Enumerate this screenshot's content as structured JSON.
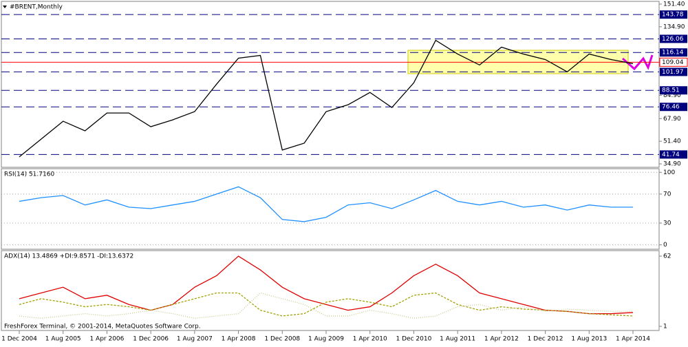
{
  "chart_data": [
    {
      "type": "line",
      "title": "#BRENT,Monthly",
      "color": "#000000",
      "values": [
        40,
        53,
        66,
        59,
        72,
        72,
        62,
        67,
        73,
        93,
        112,
        114,
        45,
        50,
        73,
        78,
        87,
        76,
        94,
        125,
        115,
        107,
        120,
        115,
        111,
        102,
        115,
        111,
        108
      ],
      "ylim": [
        32.4,
        153.4
      ],
      "yticks": [
        {
          "value": 151.4,
          "label": "151.40"
        },
        {
          "value": 134.9,
          "label": "134.90"
        },
        {
          "value": 84.9,
          "label": "84.90"
        },
        {
          "value": 67.9,
          "label": "67.90"
        },
        {
          "value": 51.4,
          "label": "51.40"
        },
        {
          "value": 34.9,
          "label": "34.90"
        }
      ],
      "levels": [
        {
          "value": 143.78,
          "label": "143.78"
        },
        {
          "value": 126.06,
          "label": "126.06"
        },
        {
          "value": 116.14,
          "label": "116.14"
        },
        {
          "value": 101.97,
          "label": "101.97"
        },
        {
          "value": 88.51,
          "label": "88.51"
        },
        {
          "value": 76.46,
          "label": "76.46"
        },
        {
          "value": 41.74,
          "label": "41.74"
        }
      ],
      "level_color": "#00007f",
      "current": {
        "value": 109.04,
        "label": "109.04"
      },
      "current_color": "#ff0000"
    },
    {
      "type": "line",
      "title": "RSI(14) 51.7160",
      "color": "#1e90ff",
      "values": [
        60,
        65,
        68,
        55,
        62,
        52,
        50,
        55,
        60,
        70,
        80,
        65,
        35,
        32,
        38,
        55,
        58,
        50,
        62,
        75,
        60,
        55,
        60,
        52,
        55,
        48,
        55,
        52,
        52
      ],
      "ylim": [
        -6,
        105
      ],
      "yticks": [
        100,
        70,
        30,
        0
      ],
      "grid": true
    },
    {
      "type": "line",
      "title": "ADX(14) 13.4869 +DI:9.8571 -DI:13.6372",
      "categories": [
        "1 Dec 2004",
        null,
        "1 Aug 2005",
        null,
        "1 Apr 2006",
        null,
        "1 Dec 2006",
        null,
        "1 Aug 2007",
        null,
        "1 Apr 2008",
        null,
        "1 Dec 2008",
        null,
        "1 Aug 2009",
        null,
        "1 Apr 2010",
        null,
        "1 Dec 2010",
        null,
        "1 Aug 2011",
        null,
        "1 Apr 2012",
        null,
        "1 Dec 2012",
        null,
        "1 Aug 2013",
        null,
        "1 Apr 2014"
      ],
      "series": [
        {
          "color": "#e00000",
          "dash": "none",
          "values": [
            25,
            30,
            35,
            25,
            28,
            20,
            15,
            20,
            35,
            45,
            62,
            50,
            35,
            25,
            20,
            15,
            18,
            30,
            45,
            55,
            45,
            30,
            25,
            20,
            15,
            14,
            12,
            12,
            13
          ]
        },
        {
          "color": "#a0a000",
          "dash": "3 2",
          "values": [
            20,
            25,
            22,
            18,
            20,
            18,
            15,
            20,
            25,
            30,
            30,
            15,
            10,
            12,
            22,
            25,
            22,
            18,
            28,
            30,
            20,
            15,
            18,
            16,
            15,
            14,
            12,
            11,
            10
          ]
        },
        {
          "color": "#c8c890",
          "dash": "1 2",
          "values": [
            10,
            8,
            10,
            12,
            10,
            12,
            15,
            12,
            8,
            10,
            12,
            30,
            25,
            20,
            10,
            10,
            15,
            12,
            8,
            10,
            18,
            20,
            15,
            18,
            14,
            16,
            15,
            14,
            14
          ]
        }
      ],
      "ylim": [
        -2.6,
        66.8
      ],
      "yticks": [
        62,
        1
      ]
    },
    {
      "footer": "FreshForex Terminal, © 2001-2014, MetaQuotes Software Corp."
    }
  ]
}
